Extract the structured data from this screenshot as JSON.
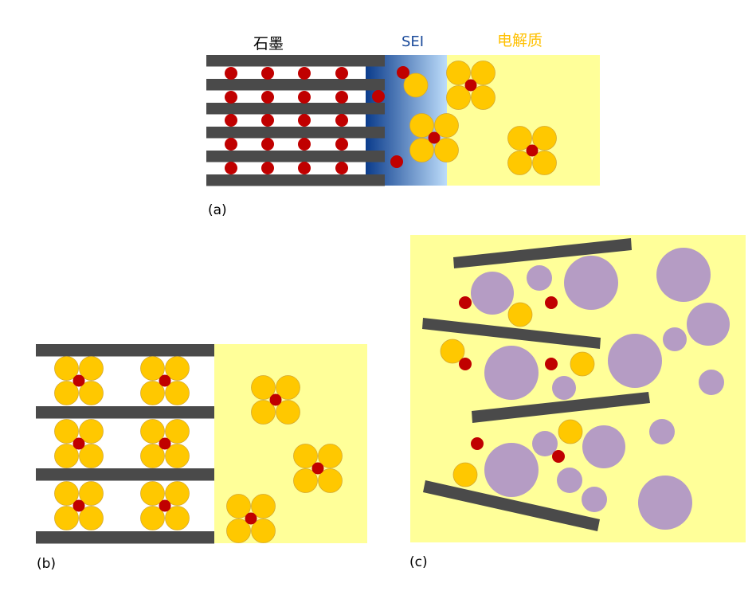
{
  "panel_a": {
    "caption": "(a)",
    "label_graphite": "石墨",
    "label_sei": "SEI",
    "label_electrolyte": "电解质"
  },
  "panel_b": {
    "caption": "(b)"
  },
  "panel_c": {
    "caption": "(c)"
  },
  "colors": {
    "graphite_layer": "#4a4a4a",
    "lithium_ion": "#c00000",
    "solvent_molecule": "#ffc800",
    "electrolyte": "#ffff99",
    "sei_dark": "#0b3c8c",
    "sei_light": "#bcdcfa",
    "particle": "#b59cc4",
    "label_graphite": "#000000",
    "label_sei": "#1a4a9a",
    "label_electrolyte": "#ffc000"
  }
}
